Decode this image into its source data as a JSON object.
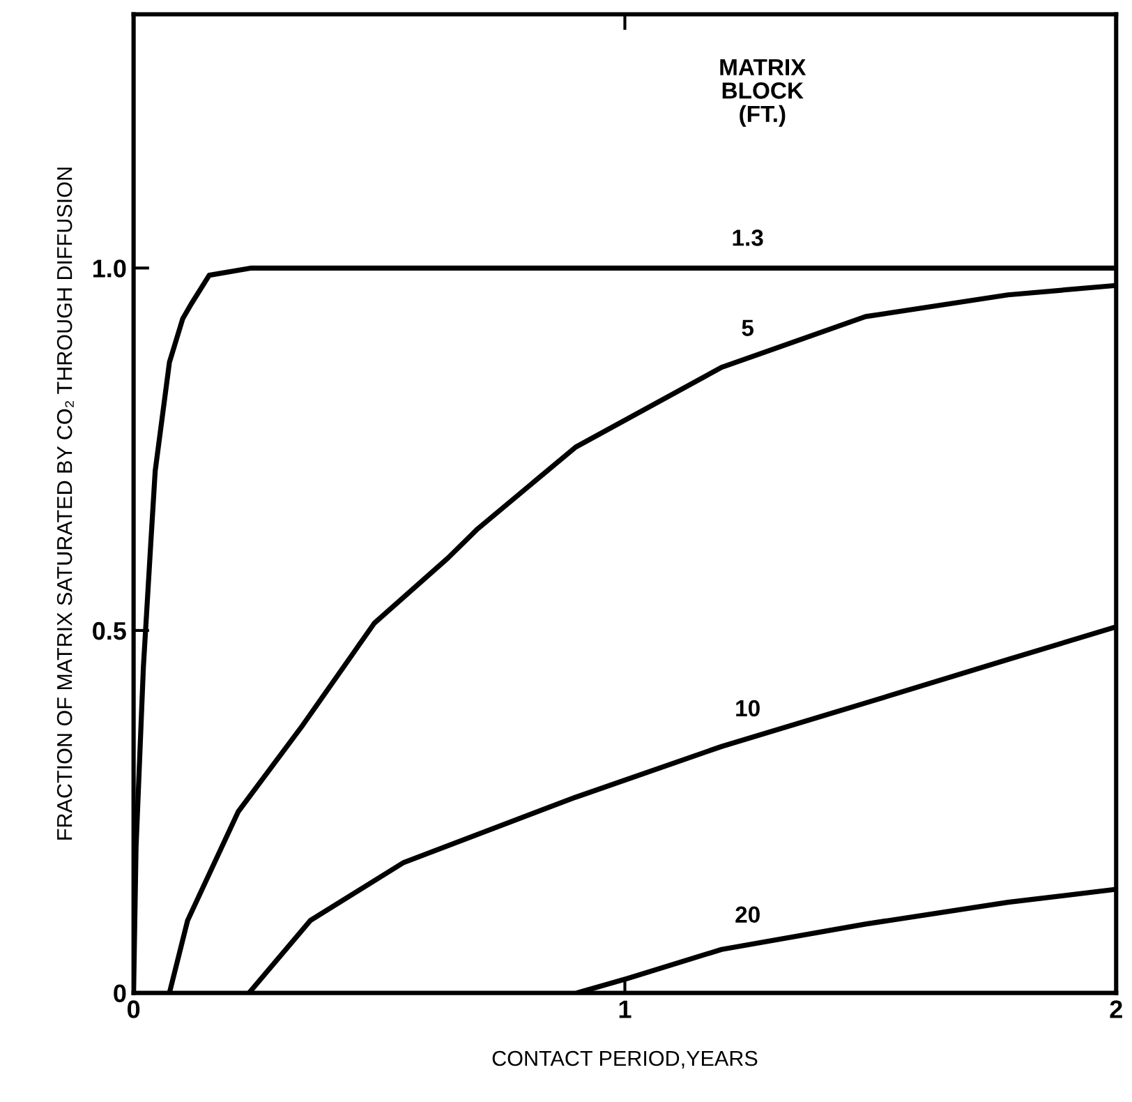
{
  "chart_data": {
    "type": "line",
    "xlabel": "CONTACT PERIOD,YEARS",
    "ylabel": "FRACTION OF MATRIX SATURATED BY CO₂ THROUGH DIFFUSION",
    "legend_title": "MATRIX\nBLOCK\n(FT.)",
    "xlim": [
      0,
      2
    ],
    "ylim": [
      0,
      1.35
    ],
    "xticks": [
      0,
      1,
      2
    ],
    "yticks": [
      0,
      0.5,
      {
        "value": 1,
        "label": "1.0"
      }
    ],
    "grid": false,
    "legend": false,
    "marker": "none",
    "line_style": "solid",
    "series": [
      {
        "name": "1.3",
        "color": "#000000",
        "x": [
          0,
          0.005,
          0.02,
          0.035,
          0.044,
          0.073,
          0.1,
          0.117,
          0.154,
          0.24,
          2
        ],
        "values": [
          0,
          0.2,
          0.45,
          0.62,
          0.72,
          0.87,
          0.93,
          0.95,
          0.99,
          1.0,
          1.0
        ]
      },
      {
        "name": "5",
        "color": "#000000",
        "x": [
          0.073,
          0.11,
          0.213,
          0.345,
          0.49,
          0.64,
          0.7,
          0.9,
          1.197,
          1.49,
          1.78,
          2.0
        ],
        "values": [
          0,
          0.1,
          0.25,
          0.37,
          0.51,
          0.6,
          0.64,
          0.753,
          0.863,
          0.933,
          0.963,
          0.976
        ]
      },
      {
        "name": "10",
        "color": "#000000",
        "x": [
          0.235,
          0.36,
          0.55,
          0.9,
          1.197,
          1.49,
          1.78,
          2.0
        ],
        "values": [
          0,
          0.1,
          0.18,
          0.27,
          0.34,
          0.4,
          0.46,
          0.505
        ]
      },
      {
        "name": "20",
        "color": "#000000",
        "x": [
          0.903,
          1.006,
          1.197,
          1.49,
          1.78,
          2.0
        ],
        "values": [
          0,
          0.02,
          0.06,
          0.095,
          0.125,
          0.143
        ]
      }
    ]
  }
}
